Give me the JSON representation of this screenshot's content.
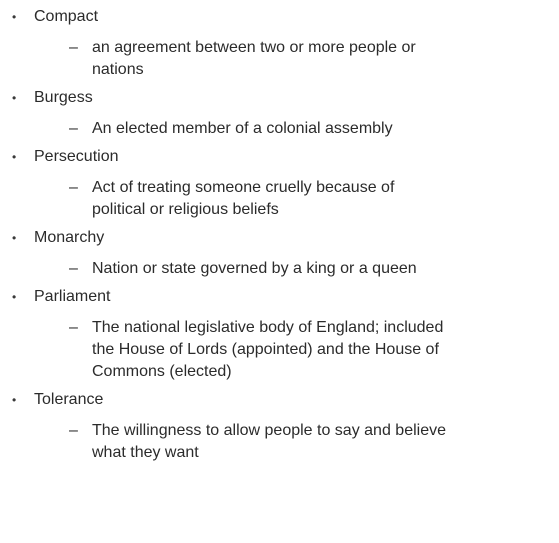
{
  "terms": [
    {
      "term": "Compact",
      "definition": [
        "an agreement between two or more people or",
        "nations"
      ]
    },
    {
      "term": "Burgess",
      "definition": [
        "An elected member of a colonial assembly"
      ]
    },
    {
      "term": "Persecution",
      "definition": [
        "Act of treating someone cruelly because of",
        "political or religious beliefs"
      ]
    },
    {
      "term": "Monarchy",
      "definition": [
        "Nation or state governed by a king or a queen"
      ]
    },
    {
      "term": "Parliament",
      "definition": [
        "The national legislative body of England; included",
        "the House of Lords (appointed) and the House of",
        "Commons (elected)"
      ]
    },
    {
      "term": "Tolerance",
      "definition": [
        "The willingness to allow people to say and believe",
        "what they want"
      ]
    }
  ],
  "bullet_glyph": "•",
  "dash_glyph": "–"
}
